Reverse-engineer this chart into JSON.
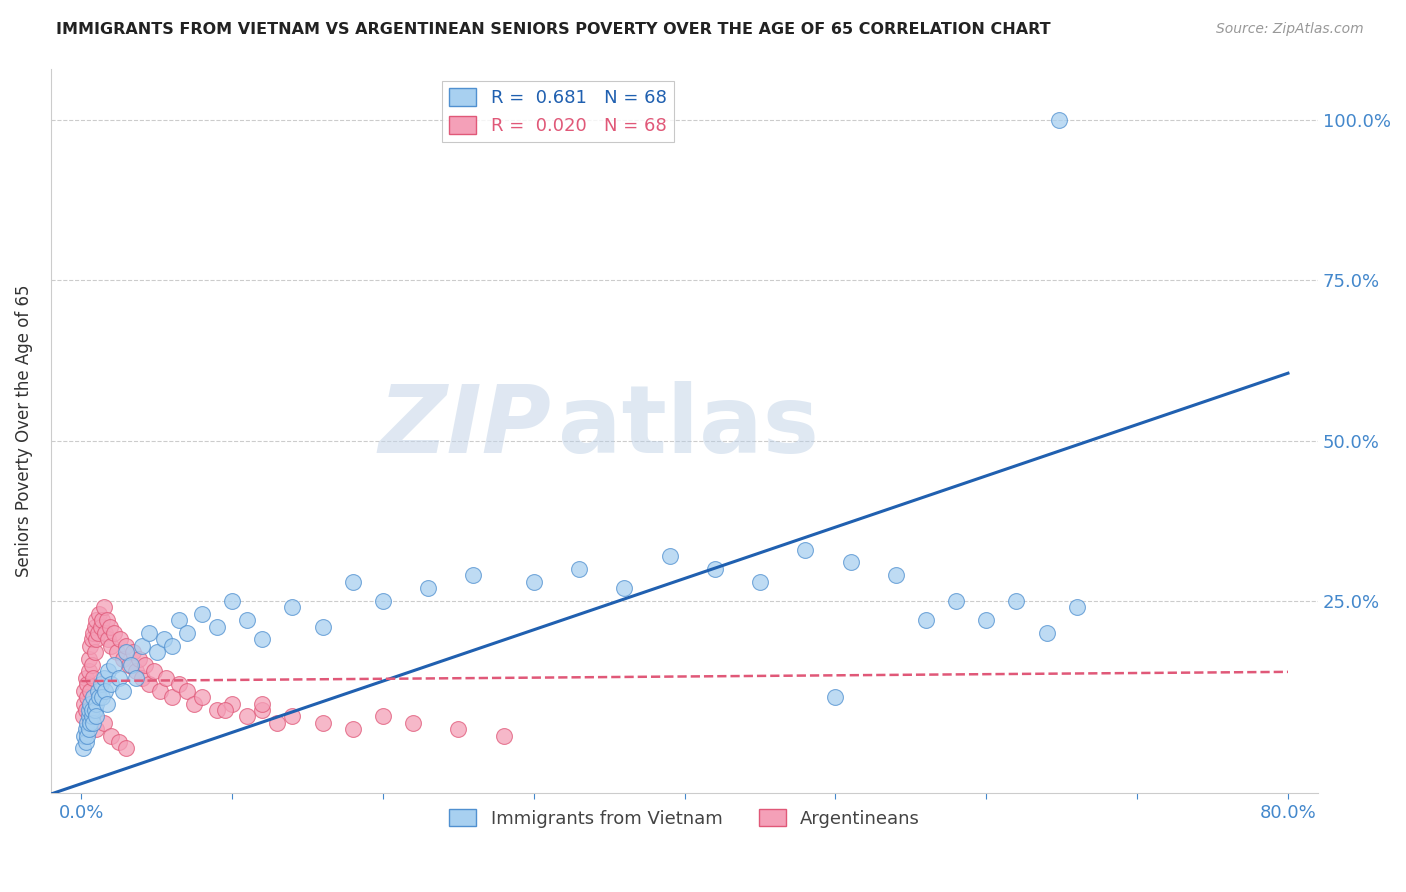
{
  "title": "IMMIGRANTS FROM VIETNAM VS ARGENTINEAN SENIORS POVERTY OVER THE AGE OF 65 CORRELATION CHART",
  "source": "Source: ZipAtlas.com",
  "ylabel": "Seniors Poverty Over the Age of 65",
  "xlim": [
    -0.02,
    0.82
  ],
  "ylim": [
    -0.05,
    1.08
  ],
  "blue_color": "#A8D0F0",
  "pink_color": "#F4A0B8",
  "blue_edge_color": "#5090D0",
  "pink_edge_color": "#E05878",
  "blue_line_color": "#2060B0",
  "pink_line_color": "#E05878",
  "legend_blue_label": "R =  0.681   N = 68",
  "legend_pink_label": "R =  0.020   N = 68",
  "legend1_label": "Immigrants from Vietnam",
  "legend2_label": "Argentineans",
  "watermark_zip": "ZIP",
  "watermark_atlas": "atlas",
  "background_color": "#FFFFFF",
  "grid_color": "#CCCCCC",
  "title_color": "#222222",
  "axis_tick_color": "#4488CC",
  "right_axis_color": "#4488CC",
  "blue_x": [
    0.001,
    0.002,
    0.003,
    0.003,
    0.004,
    0.004,
    0.005,
    0.005,
    0.005,
    0.006,
    0.006,
    0.007,
    0.007,
    0.008,
    0.008,
    0.009,
    0.01,
    0.01,
    0.011,
    0.012,
    0.013,
    0.014,
    0.015,
    0.016,
    0.017,
    0.018,
    0.02,
    0.022,
    0.025,
    0.028,
    0.03,
    0.033,
    0.036,
    0.04,
    0.045,
    0.05,
    0.055,
    0.06,
    0.065,
    0.07,
    0.08,
    0.09,
    0.1,
    0.11,
    0.12,
    0.14,
    0.16,
    0.18,
    0.2,
    0.23,
    0.26,
    0.3,
    0.33,
    0.36,
    0.39,
    0.42,
    0.45,
    0.48,
    0.51,
    0.54,
    0.56,
    0.58,
    0.6,
    0.62,
    0.64,
    0.66,
    0.5,
    0.648
  ],
  "blue_y": [
    0.02,
    0.04,
    0.05,
    0.03,
    0.06,
    0.04,
    0.07,
    0.05,
    0.08,
    0.06,
    0.09,
    0.07,
    0.08,
    0.06,
    0.1,
    0.08,
    0.09,
    0.07,
    0.11,
    0.1,
    0.12,
    0.1,
    0.13,
    0.11,
    0.09,
    0.14,
    0.12,
    0.15,
    0.13,
    0.11,
    0.17,
    0.15,
    0.13,
    0.18,
    0.2,
    0.17,
    0.19,
    0.18,
    0.22,
    0.2,
    0.23,
    0.21,
    0.25,
    0.22,
    0.19,
    0.24,
    0.21,
    0.28,
    0.25,
    0.27,
    0.29,
    0.28,
    0.3,
    0.27,
    0.32,
    0.3,
    0.28,
    0.33,
    0.31,
    0.29,
    0.22,
    0.25,
    0.22,
    0.25,
    0.2,
    0.24,
    0.1,
    1.0
  ],
  "pink_x": [
    0.001,
    0.002,
    0.002,
    0.003,
    0.003,
    0.004,
    0.004,
    0.005,
    0.005,
    0.006,
    0.006,
    0.007,
    0.007,
    0.008,
    0.008,
    0.009,
    0.009,
    0.01,
    0.01,
    0.011,
    0.012,
    0.013,
    0.014,
    0.015,
    0.016,
    0.017,
    0.018,
    0.019,
    0.02,
    0.022,
    0.024,
    0.026,
    0.028,
    0.03,
    0.032,
    0.034,
    0.036,
    0.038,
    0.04,
    0.042,
    0.045,
    0.048,
    0.052,
    0.056,
    0.06,
    0.065,
    0.07,
    0.075,
    0.08,
    0.09,
    0.1,
    0.11,
    0.12,
    0.13,
    0.14,
    0.16,
    0.18,
    0.2,
    0.22,
    0.25,
    0.28,
    0.12,
    0.095,
    0.01,
    0.015,
    0.02,
    0.025,
    0.03
  ],
  "pink_y": [
    0.07,
    0.09,
    0.11,
    0.08,
    0.13,
    0.1,
    0.12,
    0.14,
    0.16,
    0.11,
    0.18,
    0.15,
    0.19,
    0.13,
    0.2,
    0.17,
    0.21,
    0.19,
    0.22,
    0.2,
    0.23,
    0.21,
    0.22,
    0.24,
    0.2,
    0.22,
    0.19,
    0.21,
    0.18,
    0.2,
    0.17,
    0.19,
    0.16,
    0.18,
    0.15,
    0.17,
    0.14,
    0.16,
    0.13,
    0.15,
    0.12,
    0.14,
    0.11,
    0.13,
    0.1,
    0.12,
    0.11,
    0.09,
    0.1,
    0.08,
    0.09,
    0.07,
    0.08,
    0.06,
    0.07,
    0.06,
    0.05,
    0.07,
    0.06,
    0.05,
    0.04,
    0.09,
    0.08,
    0.05,
    0.06,
    0.04,
    0.03,
    0.02
  ]
}
